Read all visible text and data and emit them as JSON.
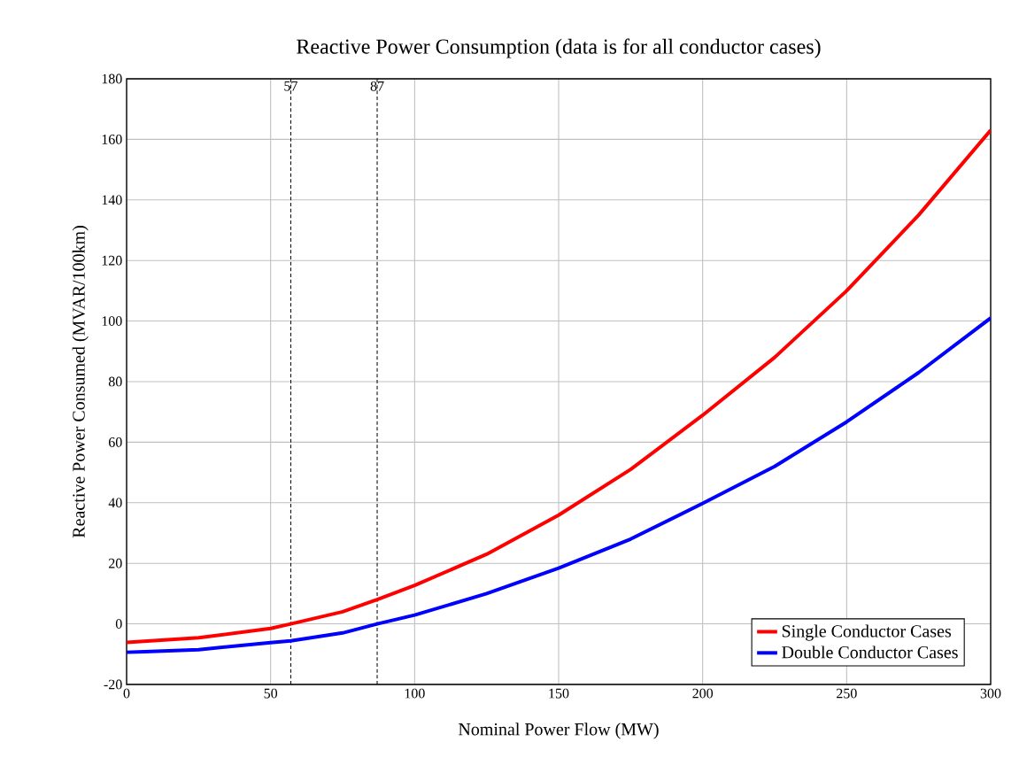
{
  "chart_data": {
    "type": "line",
    "title": "Reactive Power Consumption (data is for all conductor cases)",
    "xlabel": "Nominal Power Flow (MW)",
    "ylabel": "Reactive Power Consumed (MVAR/100km)",
    "x": [
      0,
      25,
      50,
      57,
      75,
      87,
      100,
      125,
      150,
      175,
      200,
      225,
      250,
      275,
      300
    ],
    "series": [
      {
        "name": "Single Conductor Cases",
        "color": "#ff0000",
        "values": [
          -6.1,
          -4.6,
          -1.5,
          0,
          4,
          8,
          12.7,
          23,
          35.9,
          51,
          68.9,
          88,
          110,
          135,
          163
        ]
      },
      {
        "name": "Double Conductor Cases",
        "color": "#0000ff",
        "values": [
          -9.4,
          -8.5,
          -6.2,
          -5.6,
          -3,
          0,
          2.9,
          10,
          18.4,
          28,
          39.8,
          52,
          66.7,
          83,
          101
        ]
      }
    ],
    "xlim": [
      0,
      300
    ],
    "ylim": [
      -20,
      180
    ],
    "xticks": [
      0,
      50,
      100,
      150,
      200,
      250,
      300
    ],
    "yticks": [
      -20,
      0,
      20,
      40,
      60,
      80,
      100,
      120,
      140,
      160,
      180
    ],
    "grid": true,
    "legend": "bottom right",
    "marker": "none",
    "line_style": "solid",
    "ref_lines": [
      {
        "axis": "x",
        "value": 57,
        "label": "57",
        "color": "#000000",
        "line_style": "dashed"
      },
      {
        "axis": "x",
        "value": 87,
        "label": "87",
        "color": "#000000",
        "line_style": "dashed"
      }
    ]
  }
}
